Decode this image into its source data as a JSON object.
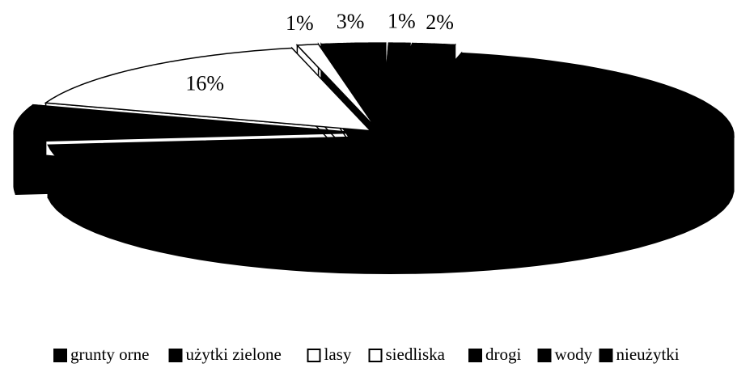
{
  "chart_data": {
    "type": "pie3d",
    "categories": [
      "grunty orne",
      "użytki zielone",
      "lasy",
      "siedliska",
      "drogi",
      "wody",
      "nieużytki"
    ],
    "values": [
      70,
      7,
      16,
      1,
      3,
      1,
      2
    ],
    "value_labels": [
      null,
      null,
      "16%",
      "1%",
      "3%",
      "1%",
      "2%"
    ],
    "colors": [
      "#000000",
      "#000000",
      "#ffffff",
      "#ffffff",
      "#000000",
      "#000000",
      "#000000"
    ],
    "legend": "bottom"
  }
}
